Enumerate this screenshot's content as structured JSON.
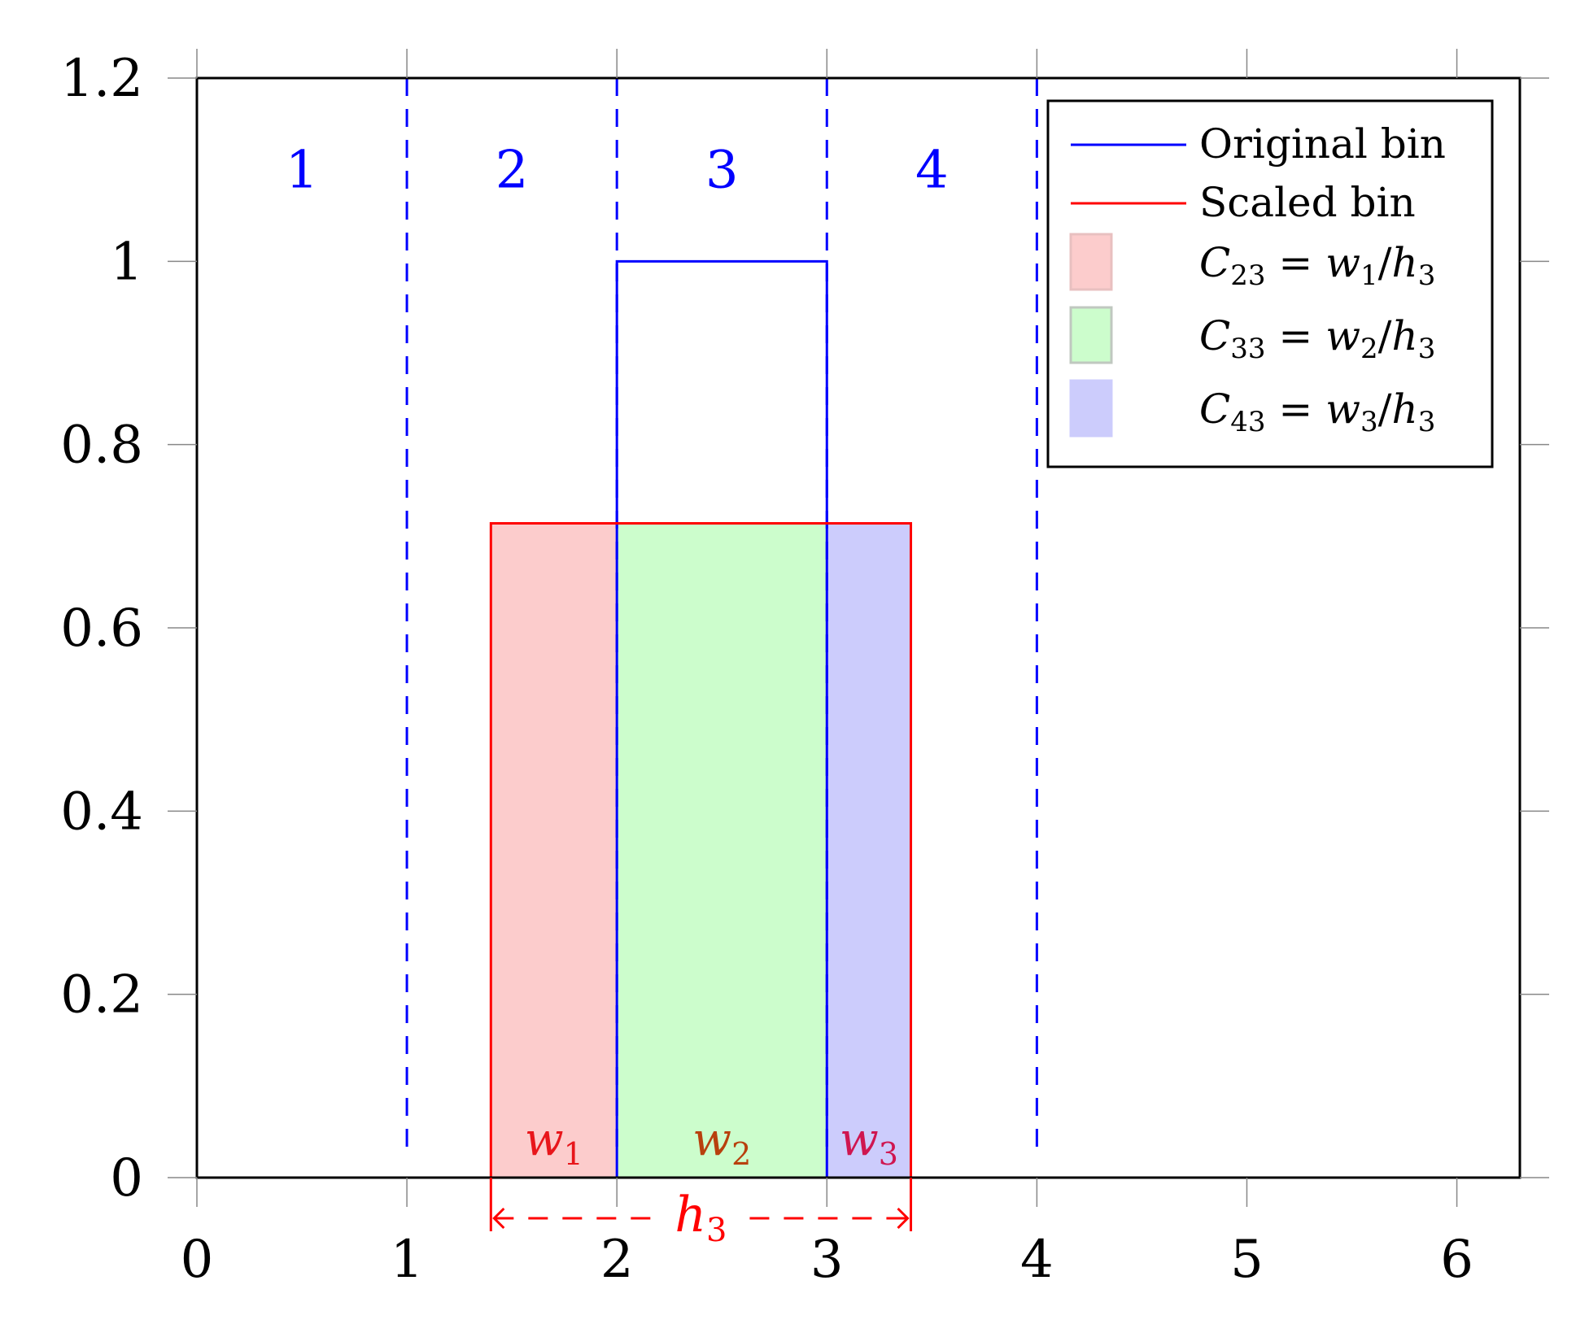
{
  "chart_data": {
    "type": "bar",
    "title": "",
    "xlabel": "",
    "ylabel": "",
    "xlim": [
      0,
      6.3
    ],
    "ylim": [
      0,
      1.2
    ],
    "x_ticks": [
      0,
      1,
      2,
      3,
      4,
      5,
      6
    ],
    "y_ticks": [
      0,
      0.2,
      0.4,
      0.6,
      0.8,
      1,
      1.2
    ],
    "x_tick_labels": [
      "0",
      "1",
      "2",
      "3",
      "4",
      "5",
      "6"
    ],
    "y_tick_labels": [
      "0",
      "0.2",
      "0.4",
      "0.6",
      "0.8",
      "1",
      "1.2"
    ],
    "bin_edges": [
      1,
      2,
      3,
      4
    ],
    "bin_labels": [
      {
        "label": "1",
        "x": 0.5,
        "y": 1.1
      },
      {
        "label": "2",
        "x": 1.5,
        "y": 1.1
      },
      {
        "label": "3",
        "x": 2.5,
        "y": 1.1
      },
      {
        "label": "4",
        "x": 3.5,
        "y": 1.1
      }
    ],
    "original_bin": {
      "x0": 2,
      "x1": 3,
      "height": 1
    },
    "scaled_bin": {
      "x0": 1.4,
      "x1": 3.4,
      "height": 0.714
    },
    "overlap_regions": [
      {
        "name": "C23",
        "x0": 1.4,
        "x1": 2,
        "height": 0.714,
        "color": "#fccccc",
        "width_label": "w",
        "width_sub": "1",
        "label_color": "#e8161b"
      },
      {
        "name": "C33",
        "x0": 2,
        "x1": 3,
        "height": 0.714,
        "color": "#ccfdcc",
        "width_label": "w",
        "width_sub": "2",
        "label_color": "#b8400d"
      },
      {
        "name": "C43",
        "x0": 3,
        "x1": 3.4,
        "height": 0.714,
        "color": "#ccccfc",
        "width_label": "w",
        "width_sub": "3",
        "label_color": "#cf1650"
      }
    ],
    "span_label": {
      "text": "h",
      "sub": "3",
      "x0": 1.4,
      "x1": 3.4
    },
    "legend": {
      "position": "top-right",
      "entries": [
        {
          "kind": "line",
          "color": "#0000ff",
          "text": "Original bin"
        },
        {
          "kind": "line",
          "color": "#ff0000",
          "text": "Scaled bin"
        },
        {
          "kind": "patch",
          "color": "#fccccc",
          "border": "#e8c0c0",
          "C_sub": "23",
          "w_sub": "1",
          "h_sub": "3"
        },
        {
          "kind": "patch",
          "color": "#ccfdcc",
          "border": "#c0c8c0",
          "C_sub": "33",
          "w_sub": "2",
          "h_sub": "3"
        },
        {
          "kind": "patch",
          "color": "#ccccfc",
          "border": "#ccccfc",
          "C_sub": "43",
          "w_sub": "3",
          "h_sub": "3"
        }
      ]
    },
    "colors": {
      "original": "#0000ff",
      "scaled": "#ff0000",
      "bin_label": "#0000ff",
      "tick_grey": "#888888"
    }
  }
}
